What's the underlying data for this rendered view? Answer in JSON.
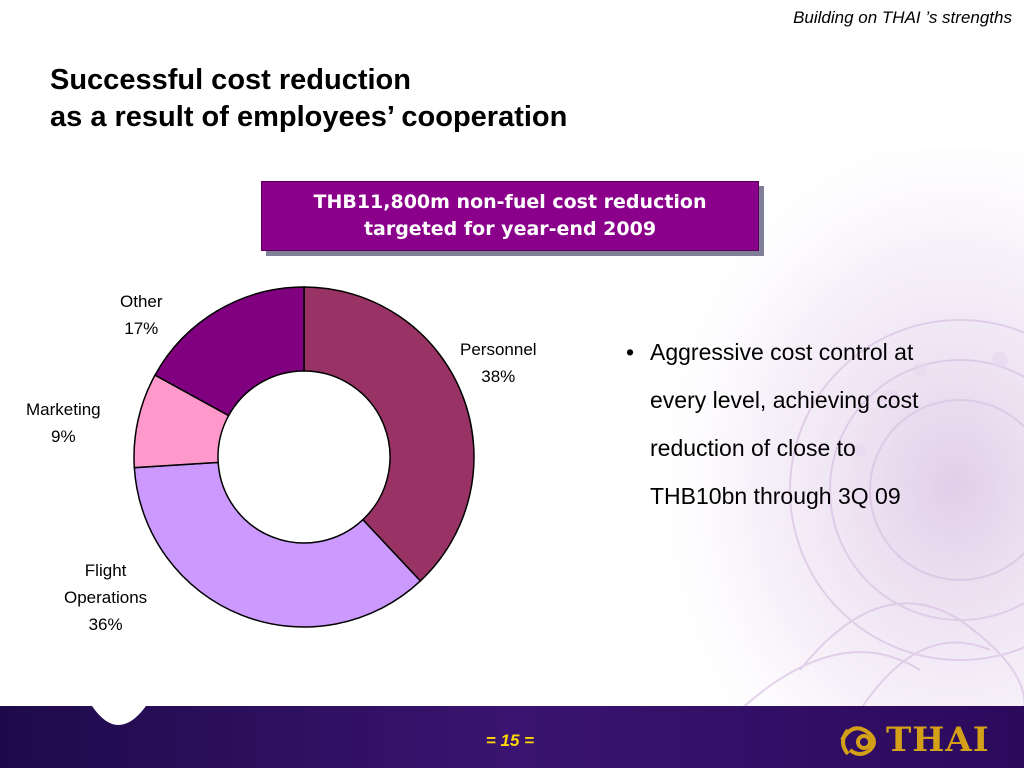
{
  "header": {
    "tagline": "Building on THAI ’s strengths"
  },
  "title": {
    "line1": "Successful cost reduction",
    "line2": "as a result of employees’ cooperation"
  },
  "callout": {
    "line1": "THB11,800m non-fuel cost reduction",
    "line2": "targeted for year-end 2009"
  },
  "chart_data": {
    "type": "pie",
    "categories": [
      "Personnel",
      "Flight Operations",
      "Marketing",
      "Other"
    ],
    "values": [
      38,
      36,
      9,
      17
    ],
    "unit": "%",
    "labels": [
      {
        "name": "Personnel",
        "value": "38%"
      },
      {
        "name": "Flight Operations",
        "name_line1": "Flight",
        "name_line2": "Operations",
        "value": "36%"
      },
      {
        "name": "Marketing",
        "value": "9%"
      },
      {
        "name": "Other",
        "value": "17%"
      }
    ],
    "colors": [
      "#993366",
      "#cc99ff",
      "#ff99cc",
      "#800080"
    ]
  },
  "bullets": [
    {
      "symbol": "•",
      "lines": [
        "Aggressive cost control at",
        "every level, achieving cost",
        "reduction of close to",
        "THB10bn through 3Q 09"
      ]
    }
  ],
  "footer": {
    "page_number": "= 15 =",
    "logo_text": "THAI",
    "colors": {
      "band": "#2b0a5c",
      "page_number": "#ffd700",
      "logo": "#d4a017"
    }
  }
}
